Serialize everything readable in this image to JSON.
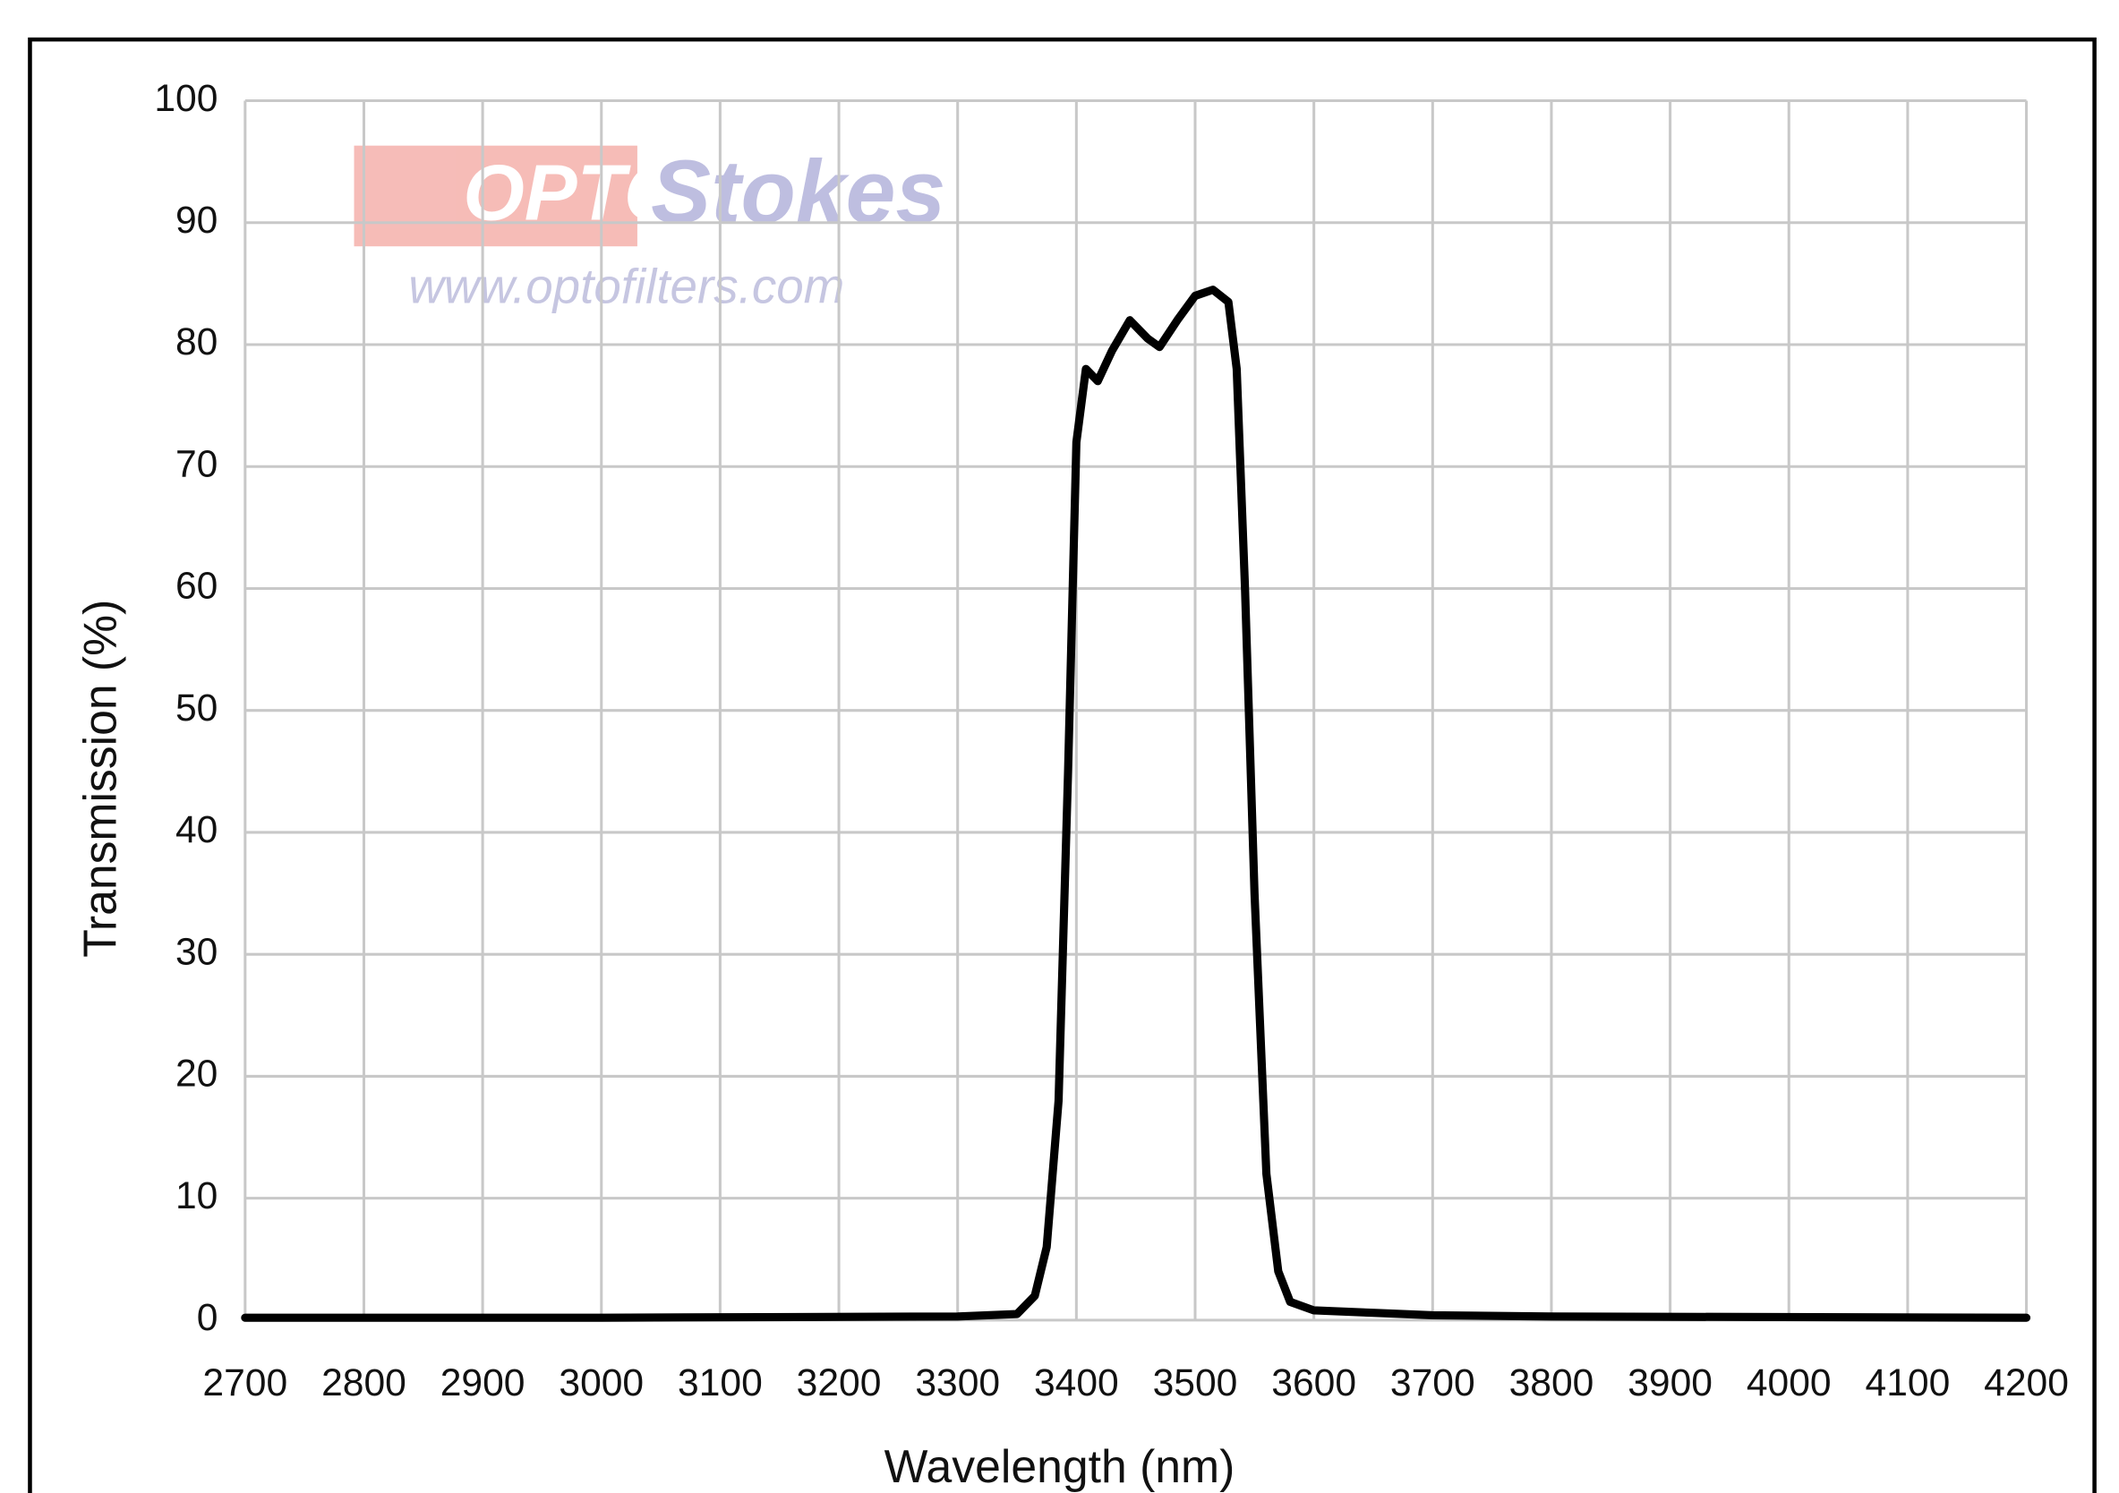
{
  "chart_data": {
    "type": "line",
    "xlabel": "Wavelength (nm)",
    "ylabel": "Transmission (%)",
    "watermark": {
      "brand_left": "OPTO",
      "brand_right": "Stokes",
      "url": "www.optofilters.com"
    },
    "series": [
      {
        "color": "#000000",
        "x": [
          2700,
          3000,
          3300,
          3350,
          3365,
          3375,
          3385,
          3393,
          3400,
          3408,
          3418,
          3430,
          3445,
          3460,
          3470,
          3485,
          3500,
          3515,
          3528,
          3535,
          3542,
          3550,
          3560,
          3570,
          3580,
          3600,
          3650,
          3700,
          3800,
          4200
        ],
        "values": [
          0.2,
          0.2,
          0.3,
          0.5,
          2,
          6,
          18,
          45,
          72,
          78,
          77,
          79.5,
          82,
          80.5,
          79.8,
          82,
          84,
          84.5,
          83.5,
          78,
          60,
          35,
          12,
          4,
          1.5,
          0.8,
          0.6,
          0.4,
          0.3,
          0.2
        ]
      }
    ],
    "xlim": [
      2700,
      4200
    ],
    "xticks": [
      2700,
      2800,
      2900,
      3000,
      3100,
      3200,
      3300,
      3400,
      3500,
      3600,
      3700,
      3800,
      3900,
      4000,
      4100,
      4200
    ],
    "ylim": [
      0,
      100
    ],
    "yticks": [
      0,
      10,
      20,
      30,
      40,
      50,
      60,
      70,
      80,
      90,
      100
    ],
    "grid": true
  }
}
